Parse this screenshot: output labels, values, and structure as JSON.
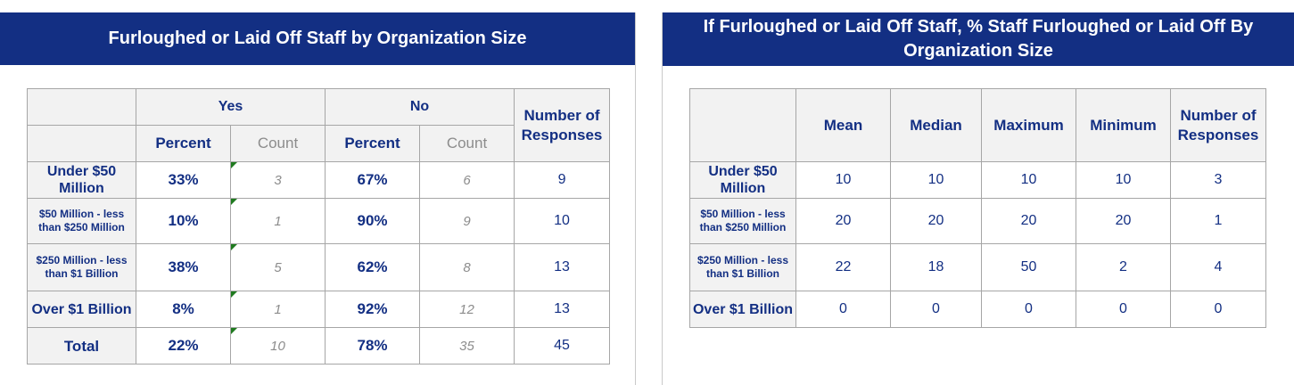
{
  "left": {
    "title": "Furloughed or Laid Off Staff by Organization Size",
    "header": {
      "yes": "Yes",
      "no": "No",
      "responses": "Number of Responses",
      "percent": "Percent",
      "count": "Count"
    },
    "rows": [
      {
        "label": "Under $50 Million",
        "yes_pct": "33%",
        "yes_count": "3",
        "no_pct": "67%",
        "no_count": "6",
        "responses": "9"
      },
      {
        "label": "$50 Million - less than $250 Million",
        "yes_pct": "10%",
        "yes_count": "1",
        "no_pct": "90%",
        "no_count": "9",
        "responses": "10"
      },
      {
        "label": "$250 Million - less than $1 Billion",
        "yes_pct": "38%",
        "yes_count": "5",
        "no_pct": "62%",
        "no_count": "8",
        "responses": "13"
      },
      {
        "label": "Over $1 Billion",
        "yes_pct": "8%",
        "yes_count": "1",
        "no_pct": "92%",
        "no_count": "12",
        "responses": "13"
      },
      {
        "label": "Total",
        "yes_pct": "22%",
        "yes_count": "10",
        "no_pct": "78%",
        "no_count": "35",
        "responses": "45"
      }
    ]
  },
  "right": {
    "title": "If Furloughed or Laid Off Staff, % Staff Furloughed or Laid Off By Organization Size",
    "header": {
      "mean": "Mean",
      "median": "Median",
      "maximum": "Maximum",
      "minimum": "Minimum",
      "responses": "Number of Responses"
    },
    "rows": [
      {
        "label": "Under $50 Million",
        "mean": "10",
        "median": "10",
        "maximum": "10",
        "minimum": "10",
        "responses": "3"
      },
      {
        "label": "$50 Million - less than $250 Million",
        "mean": "20",
        "median": "20",
        "maximum": "20",
        "minimum": "20",
        "responses": "1"
      },
      {
        "label": "$250 Million - less than $1 Billion",
        "mean": "22",
        "median": "18",
        "maximum": "50",
        "minimum": "2",
        "responses": "4"
      },
      {
        "label": "Over $1 Billion",
        "mean": "0",
        "median": "0",
        "maximum": "0",
        "minimum": "0",
        "responses": "0"
      }
    ]
  }
}
